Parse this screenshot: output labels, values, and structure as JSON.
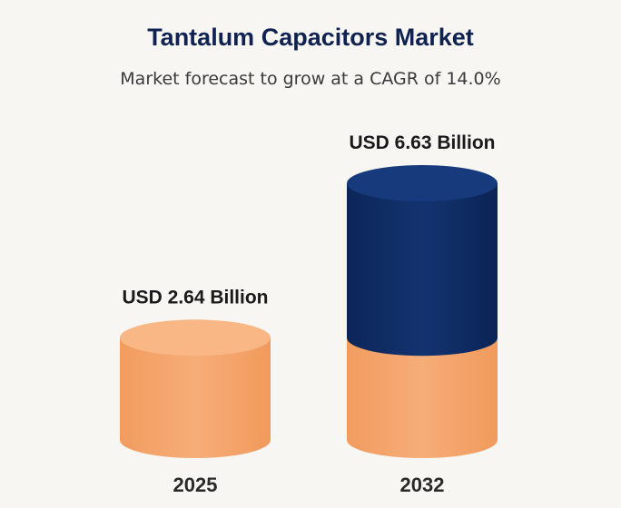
{
  "title": "Tantalum Capacitors Market",
  "subtitle": "Market forecast to grow at a CAGR of 14.0%",
  "colors": {
    "background": "#f7f6f3",
    "base": "#f4a66c",
    "growth": "#0f2c64",
    "title": "#10224f"
  },
  "chart_data": {
    "type": "bar",
    "style": "3d-cylinder",
    "title": "Tantalum Capacitors Market",
    "subtitle": "Market forecast to grow at a CAGR of 14.0%",
    "unit": "USD Billion",
    "cagr_percent": 14.0,
    "categories": [
      "2025",
      "2032"
    ],
    "values": [
      2.64,
      6.63
    ],
    "data_labels": [
      "USD 2.64 Billion",
      "USD 6.63 Billion"
    ],
    "grid": false,
    "legend": "none"
  }
}
